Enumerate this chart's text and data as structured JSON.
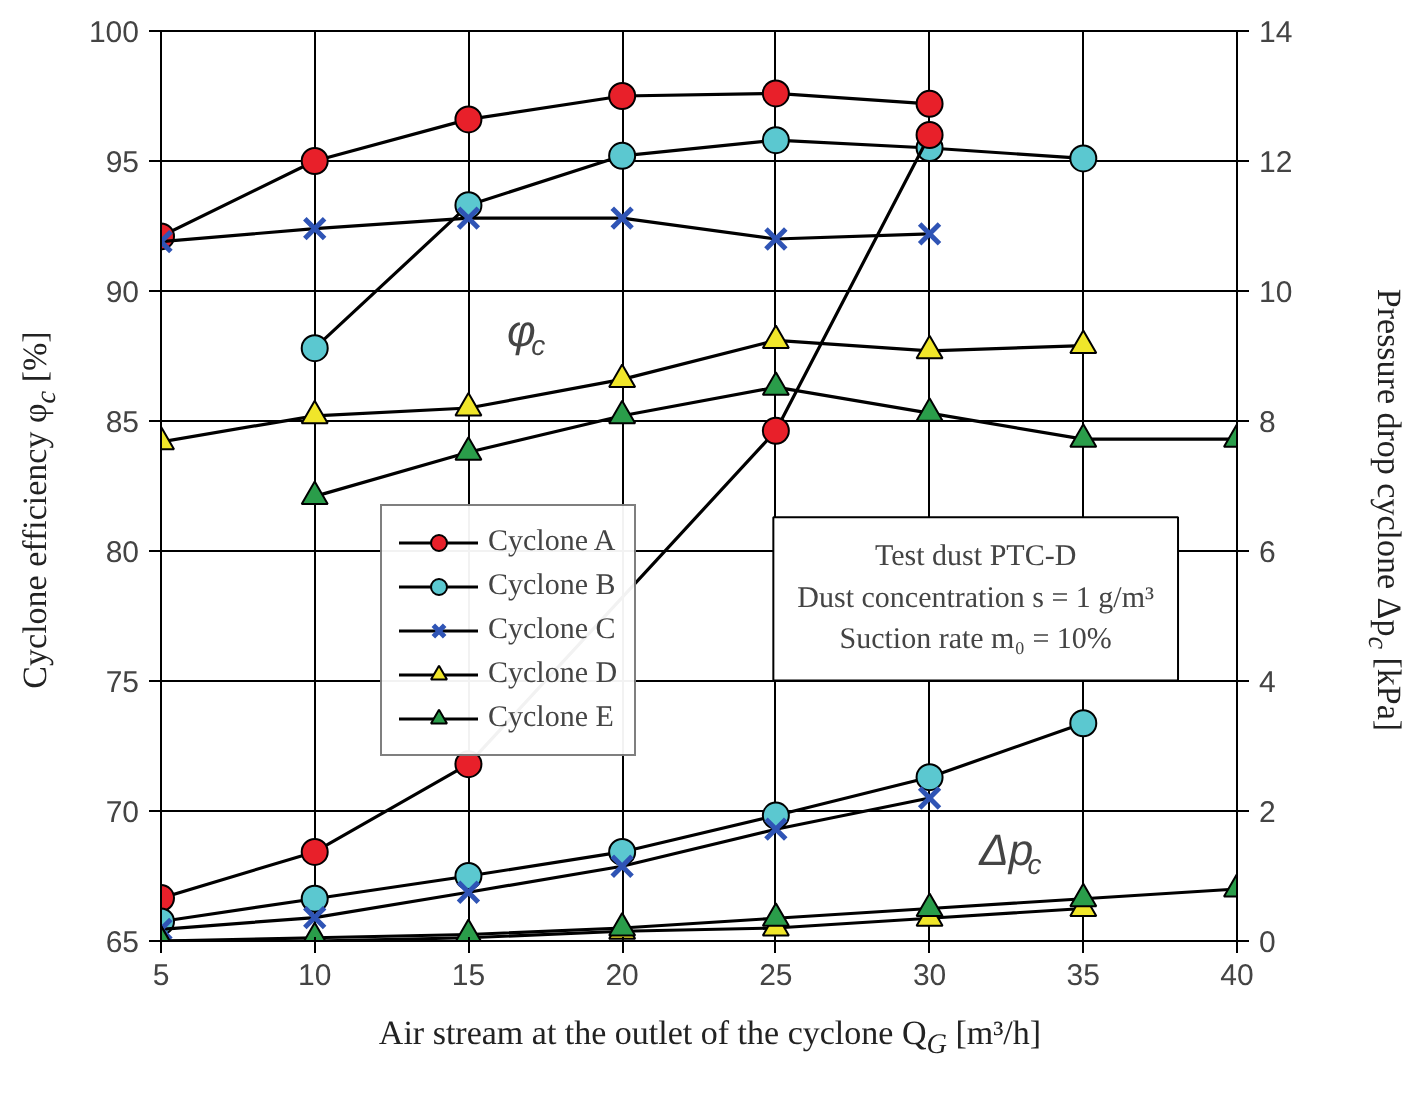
{
  "chart_data": {
    "type": "line",
    "xlabel": "Air stream at the outlet of the cyclone Q$_{G}$ [m³/h]",
    "ylabel": "Cyclone efficiency φ$_{c}$ [%]",
    "y2label": "Pressure drop cyclone Δp$_{c}$ [kPa]",
    "x": [
      5,
      10,
      15,
      20,
      25,
      30,
      35,
      40
    ],
    "xlim": [
      5,
      40
    ],
    "xticks": [
      5,
      10,
      15,
      20,
      25,
      30,
      35,
      40
    ],
    "ylim": [
      65,
      100
    ],
    "yticks": [
      65,
      70,
      75,
      80,
      85,
      90,
      95,
      100
    ],
    "y2lim": [
      0,
      14
    ],
    "y2ticks": [
      0,
      2,
      4,
      6,
      8,
      10,
      12,
      14
    ],
    "grid": true,
    "legend": "center left",
    "series": [
      {
        "name": "Cyclone A",
        "color": "#e8202a",
        "marker": "circle",
        "values": [
          92.1,
          95.0,
          96.6,
          97.5,
          97.6,
          97.2,
          null,
          null
        ]
      },
      {
        "name": "Cyclone B",
        "color": "#5bc8d0",
        "marker": "circle",
        "values": [
          null,
          87.8,
          93.3,
          95.2,
          95.8,
          95.5,
          95.1,
          null
        ]
      },
      {
        "name": "Cyclone C",
        "color": "#2f54b5",
        "marker": "cross",
        "values": [
          91.9,
          92.4,
          92.8,
          92.8,
          92.0,
          92.2,
          null,
          null
        ]
      },
      {
        "name": "Cyclone D",
        "color": "#f0e62a",
        "marker": "triangle",
        "values": [
          84.2,
          85.2,
          85.5,
          86.6,
          88.1,
          87.7,
          87.9,
          null
        ]
      },
      {
        "name": "Cyclone E",
        "color": "#2a9d4a",
        "marker": "triangle",
        "values": [
          null,
          82.1,
          83.8,
          85.2,
          86.3,
          85.3,
          84.3,
          84.3
        ]
      },
      {
        "color": "#e8202a",
        "marker": "circle",
        "axis": "y2",
        "values": [
          0.66,
          1.37,
          2.72,
          null,
          7.85,
          12.4,
          null,
          null
        ]
      },
      {
        "color": "#5bc8d0",
        "marker": "circle",
        "axis": "y2",
        "values": [
          0.3,
          0.65,
          1.0,
          1.37,
          1.93,
          2.52,
          3.35,
          null
        ]
      },
      {
        "color": "#2f54b5",
        "marker": "cross",
        "axis": "y2",
        "values": [
          0.18,
          0.36,
          0.75,
          1.15,
          1.72,
          2.2,
          null,
          null
        ]
      },
      {
        "color": "#f0e62a",
        "marker": "triangle",
        "axis": "y2",
        "values": [
          0.0,
          0.0,
          0.05,
          0.15,
          0.2,
          0.35,
          0.5,
          null
        ]
      },
      {
        "color": "#2a9d4a",
        "marker": "triangle",
        "axis": "y2",
        "values": [
          0.0,
          0.05,
          0.1,
          0.2,
          0.35,
          0.5,
          0.65,
          0.8
        ]
      }
    ],
    "annotations": [
      "φ$_{c}$",
      "Δp$_{c}$",
      "Test dust PTC-D",
      "Dust concentration s = 1 g/m³",
      "Suction rate m₀ = 10%"
    ]
  }
}
